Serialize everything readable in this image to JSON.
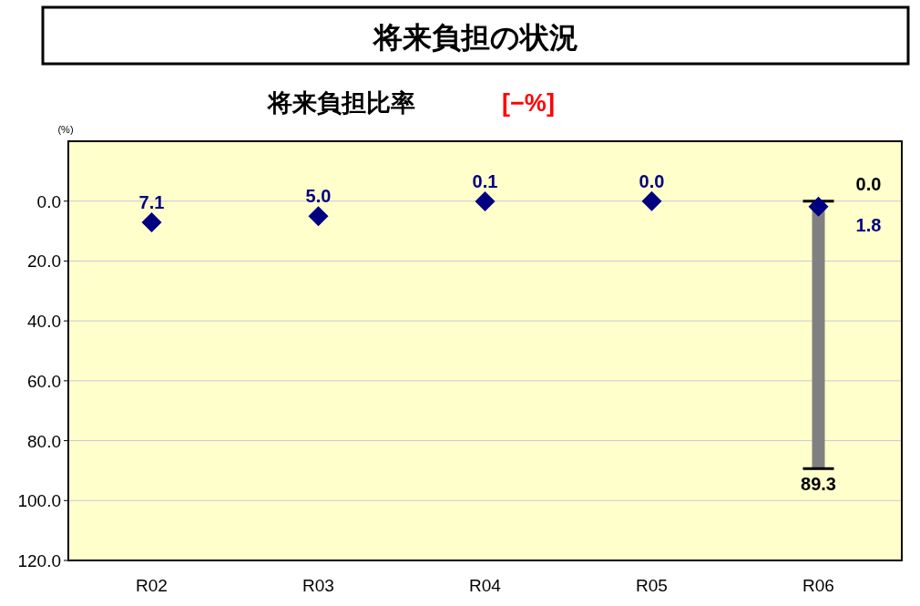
{
  "chart_data": {
    "type": "scatter",
    "title": "将来負担の状況",
    "subtitle": "将来負担比率",
    "ylabel": "(%)",
    "annotations": [
      "[−%]",
      {
        "text": "0.0",
        "x": "R06",
        "y": 0.0
      }
    ],
    "categories": [
      "R02",
      "R03",
      "R04",
      "R05",
      "R06"
    ],
    "series": [
      {
        "color": "#000080",
        "values": [
          7.1,
          5.0,
          0.1,
          0.0,
          1.8
        ],
        "value_labels": [
          "7.1",
          "5.0",
          "0.1",
          "0.0",
          "1.8"
        ]
      },
      {
        "type": "bar",
        "color": "#808080",
        "base": [
          null,
          null,
          null,
          null,
          0.0
        ],
        "values": [
          null,
          null,
          null,
          null,
          89.3
        ],
        "value_labels": [
          null,
          null,
          null,
          null,
          "89.3"
        ]
      }
    ],
    "marker": "diamond",
    "grid": "y",
    "ylim": [
      120,
      -20
    ],
    "yticks": [
      {
        "value": 0,
        "label": "0.0"
      },
      {
        "value": 20,
        "label": "20.0"
      },
      {
        "value": 40,
        "label": "40.0"
      },
      {
        "value": 60,
        "label": "60.0"
      },
      {
        "value": 80,
        "label": "80.0"
      },
      {
        "value": 100,
        "label": "100.0"
      },
      {
        "value": 120,
        "label": "120.0"
      }
    ]
  }
}
